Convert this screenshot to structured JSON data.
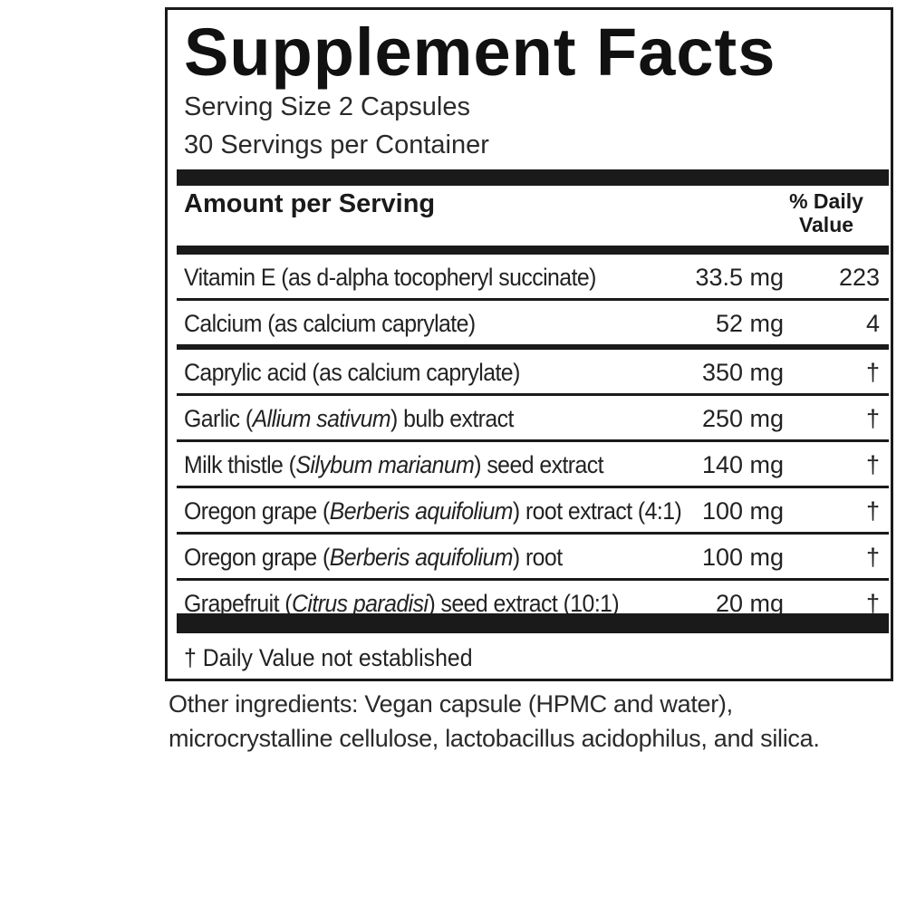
{
  "label": {
    "title": "Supplement Facts",
    "serving_size": "Serving Size 2 Capsules",
    "servings_per_container": "30 Servings per Container",
    "amount_header": "Amount per Serving",
    "dv_header_line1": "% Daily",
    "dv_header_line2": "Value",
    "rows": [
      {
        "name_pre": "Vitamin E (as d-alpha tocopheryl succinate)",
        "name_sci": "",
        "name_post": "",
        "amount": "33.5 mg",
        "dv": "223"
      },
      {
        "name_pre": "Calcium (as calcium caprylate)",
        "name_sci": "",
        "name_post": "",
        "amount": "52 mg",
        "dv": "4"
      },
      {
        "name_pre": "Caprylic acid (as calcium caprylate)",
        "name_sci": "",
        "name_post": "",
        "amount": "350 mg",
        "dv": "†"
      },
      {
        "name_pre": "Garlic (",
        "name_sci": "Allium sativum",
        "name_post": ") bulb extract",
        "amount": "250 mg",
        "dv": "†"
      },
      {
        "name_pre": "Milk thistle (",
        "name_sci": "Silybum marianum",
        "name_post": ") seed extract",
        "amount": "140 mg",
        "dv": "†"
      },
      {
        "name_pre": "Oregon grape (",
        "name_sci": "Berberis aquifolium",
        "name_post": ") root extract (4:1)",
        "amount": "100 mg",
        "dv": "†"
      },
      {
        "name_pre": "Oregon grape (",
        "name_sci": "Berberis aquifolium",
        "name_post": ") root",
        "amount": "100 mg",
        "dv": "†"
      },
      {
        "name_pre": "Grapefruit (",
        "name_sci": "Citrus paradisi",
        "name_post": ") seed extract (10:1)",
        "amount": "20 mg",
        "dv": "†"
      }
    ],
    "footnote": "† Daily Value not established"
  },
  "other_ingredients": {
    "line1": "Other ingredients: Vegan capsule (HPMC and water),",
    "line2": "microcrystalline cellulose, lactobacillus acidophilus, and silica."
  }
}
